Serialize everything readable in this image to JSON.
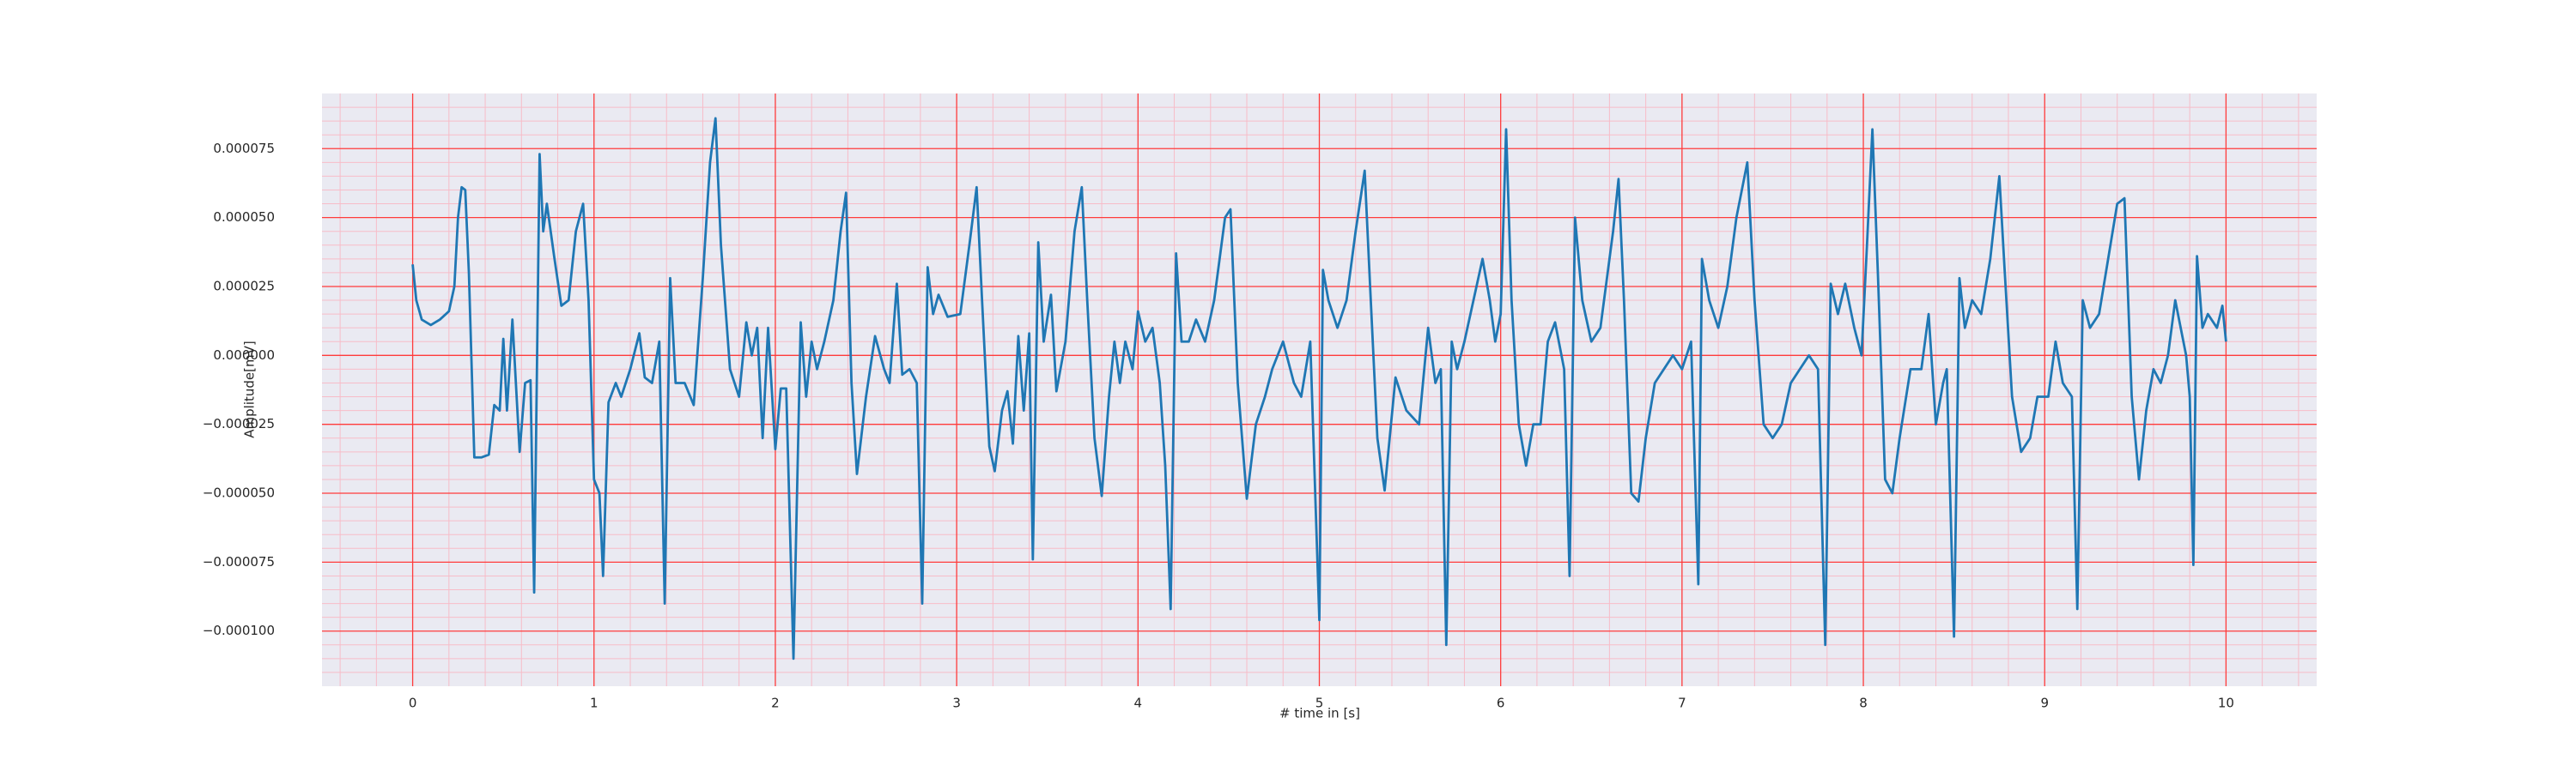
{
  "chart_data": {
    "type": "line",
    "x_label": "# time in [s]",
    "y_label": "Amplitude[mV]",
    "xlim": [
      -0.5,
      10.5
    ],
    "xticks": [
      0,
      1,
      2,
      3,
      4,
      5,
      6,
      7,
      8,
      9,
      10
    ],
    "ylim": [
      -0.00012,
      9.5e-05
    ],
    "yticks": [
      {
        "value": -0.0001,
        "label": "−0.000100"
      },
      {
        "value": -7.5e-05,
        "label": "−0.000075"
      },
      {
        "value": -5e-05,
        "label": "−0.000050"
      },
      {
        "value": -2.5e-05,
        "label": "−0.000025"
      },
      {
        "value": 0,
        "label": "0.000000"
      },
      {
        "value": 2.5e-05,
        "label": "0.000025"
      },
      {
        "value": 5e-05,
        "label": "0.000050"
      },
      {
        "value": 7.5e-05,
        "label": "0.000075"
      }
    ],
    "grid": true,
    "grid_color": "#ff3b3b",
    "minor_grid": true,
    "minor_grid_color": "#f7bcc8",
    "background": "#eaeaf2",
    "color": "#1f77b4",
    "x": [
      0,
      0.02,
      0.05,
      0.1,
      0.15,
      0.2,
      0.23,
      0.25,
      0.27,
      0.29,
      0.31,
      0.34,
      0.38,
      0.42,
      0.45,
      0.48,
      0.5,
      0.52,
      0.55,
      0.59,
      0.62,
      0.65,
      0.67,
      0.7,
      0.72,
      0.74,
      0.78,
      0.82,
      0.86,
      0.9,
      0.94,
      0.97,
      1.0,
      1.03,
      1.05,
      1.08,
      1.12,
      1.15,
      1.2,
      1.25,
      1.28,
      1.32,
      1.36,
      1.39,
      1.42,
      1.45,
      1.5,
      1.55,
      1.6,
      1.64,
      1.67,
      1.7,
      1.75,
      1.8,
      1.84,
      1.87,
      1.9,
      1.93,
      1.96,
      2.0,
      2.03,
      2.06,
      2.1,
      2.14,
      2.17,
      2.2,
      2.23,
      2.27,
      2.32,
      2.36,
      2.39,
      2.42,
      2.45,
      2.5,
      2.55,
      2.6,
      2.63,
      2.67,
      2.7,
      2.74,
      2.78,
      2.81,
      2.84,
      2.87,
      2.9,
      2.95,
      3.02,
      3.07,
      3.11,
      3.14,
      3.18,
      3.21,
      3.25,
      3.28,
      3.31,
      3.34,
      3.37,
      3.4,
      3.42,
      3.45,
      3.48,
      3.52,
      3.55,
      3.6,
      3.65,
      3.69,
      3.72,
      3.76,
      3.8,
      3.84,
      3.87,
      3.9,
      3.93,
      3.97,
      4.0,
      4.04,
      4.08,
      4.12,
      4.15,
      4.18,
      4.21,
      4.24,
      4.28,
      4.32,
      4.37,
      4.42,
      4.48,
      4.51,
      4.55,
      4.6,
      4.65,
      4.7,
      4.74,
      4.8,
      4.86,
      4.9,
      4.95,
      5.0,
      5.02,
      5.05,
      5.1,
      5.15,
      5.2,
      5.25,
      5.28,
      5.32,
      5.36,
      5.42,
      5.48,
      5.55,
      5.6,
      5.64,
      5.67,
      5.7,
      5.73,
      5.76,
      5.8,
      5.85,
      5.9,
      5.94,
      5.97,
      6.0,
      6.03,
      6.06,
      6.1,
      6.14,
      6.18,
      6.22,
      6.26,
      6.3,
      6.35,
      6.38,
      6.41,
      6.45,
      6.5,
      6.55,
      6.62,
      6.65,
      6.68,
      6.72,
      6.76,
      6.8,
      6.85,
      6.9,
      6.95,
      7.0,
      7.05,
      7.09,
      7.11,
      7.15,
      7.2,
      7.25,
      7.3,
      7.36,
      7.4,
      7.45,
      7.5,
      7.55,
      7.6,
      7.65,
      7.7,
      7.75,
      7.79,
      7.82,
      7.86,
      7.9,
      7.95,
      7.99,
      8.02,
      8.05,
      8.08,
      8.12,
      8.16,
      8.2,
      8.26,
      8.32,
      8.36,
      8.4,
      8.44,
      8.46,
      8.5,
      8.53,
      8.56,
      8.6,
      8.65,
      8.7,
      8.75,
      8.78,
      8.82,
      8.87,
      8.92,
      8.96,
      9.02,
      9.06,
      9.1,
      9.15,
      9.18,
      9.21,
      9.25,
      9.3,
      9.35,
      9.4,
      9.44,
      9.48,
      9.52,
      9.56,
      9.6,
      9.64,
      9.68,
      9.72,
      9.78,
      9.8,
      9.82,
      9.84,
      9.87,
      9.9,
      9.95,
      9.98,
      10.0
    ],
    "values": [
      3.3e-05,
      2e-05,
      1.3e-05,
      1.1e-05,
      1.3e-05,
      1.6e-05,
      2.5e-05,
      5e-05,
      6.1e-05,
      6e-05,
      3e-05,
      -3.7e-05,
      -3.7e-05,
      -3.6e-05,
      -1.8e-05,
      -2e-05,
      6e-06,
      -2e-05,
      1.3e-05,
      -3.5e-05,
      -1e-05,
      -9e-06,
      -8.6e-05,
      7.3e-05,
      4.5e-05,
      5.5e-05,
      3.6e-05,
      1.8e-05,
      2e-05,
      4.5e-05,
      5.5e-05,
      2e-05,
      -4.5e-05,
      -5e-05,
      -8e-05,
      -1.7e-05,
      -1e-05,
      -1.5e-05,
      -5e-06,
      8e-06,
      -8e-06,
      -1e-05,
      5e-06,
      -9e-05,
      2.8e-05,
      -1e-05,
      -1e-05,
      -1.8e-05,
      2.8e-05,
      7e-05,
      8.6e-05,
      4e-05,
      -5e-06,
      -1.5e-05,
      1.2e-05,
      0,
      1e-05,
      -3e-05,
      1e-05,
      -3.4e-05,
      -1.2e-05,
      -1.2e-05,
      -0.00011,
      1.2e-05,
      -1.5e-05,
      5e-06,
      -5e-06,
      5e-06,
      2e-05,
      4.5e-05,
      5.9e-05,
      -1e-05,
      -4.3e-05,
      -1.5e-05,
      7e-06,
      -5e-06,
      -1e-05,
      2.6e-05,
      -7e-06,
      -5e-06,
      -1e-05,
      -9e-05,
      3.2e-05,
      1.5e-05,
      2.2e-05,
      1.4e-05,
      1.5e-05,
      4e-05,
      6.1e-05,
      2e-05,
      -3.3e-05,
      -4.2e-05,
      -2e-05,
      -1.3e-05,
      -3.2e-05,
      7e-06,
      -2e-05,
      8e-06,
      -7.4e-05,
      4.1e-05,
      5e-06,
      2.2e-05,
      -1.3e-05,
      5e-06,
      4.5e-05,
      6.1e-05,
      2e-05,
      -3e-05,
      -5.1e-05,
      -1.5e-05,
      5e-06,
      -1e-05,
      5e-06,
      -5e-06,
      1.6e-05,
      5e-06,
      1e-05,
      -1e-05,
      -4e-05,
      -9.2e-05,
      3.7e-05,
      5e-06,
      5e-06,
      1.3e-05,
      5e-06,
      2e-05,
      5e-05,
      5.3e-05,
      -1e-05,
      -5.2e-05,
      -2.5e-05,
      -1.5e-05,
      -5e-06,
      5e-06,
      -1e-05,
      -1.5e-05,
      5e-06,
      -9.6e-05,
      3.1e-05,
      2e-05,
      1e-05,
      2e-05,
      4.5e-05,
      6.7e-05,
      2.5e-05,
      -3e-05,
      -4.9e-05,
      -8e-06,
      -2e-05,
      -2.5e-05,
      1e-05,
      -1e-05,
      -5e-06,
      -0.000105,
      5e-06,
      -5e-06,
      5e-06,
      2e-05,
      3.5e-05,
      2e-05,
      5e-06,
      1.5e-05,
      8.2e-05,
      2e-05,
      -2.5e-05,
      -4e-05,
      -2.5e-05,
      -2.5e-05,
      5e-06,
      1.2e-05,
      -5e-06,
      -8e-05,
      5e-05,
      2e-05,
      5e-06,
      1e-05,
      4.5e-05,
      6.4e-05,
      2e-05,
      -5e-05,
      -5.3e-05,
      -3e-05,
      -1e-05,
      -5e-06,
      0,
      -5e-06,
      5e-06,
      -8.3e-05,
      3.5e-05,
      2e-05,
      1e-05,
      2.5e-05,
      5e-05,
      7e-05,
      2e-05,
      -2.5e-05,
      -3e-05,
      -2.5e-05,
      -1e-05,
      -5e-06,
      0,
      -5e-06,
      -0.000105,
      2.6e-05,
      1.5e-05,
      2.6e-05,
      1e-05,
      0,
      4e-05,
      8.2e-05,
      3e-05,
      -4.5e-05,
      -5e-05,
      -3e-05,
      -5e-06,
      -5e-06,
      1.5e-05,
      -2.5e-05,
      -1e-05,
      -5e-06,
      -0.000102,
      2.8e-05,
      1e-05,
      2e-05,
      1.5e-05,
      3.5e-05,
      6.5e-05,
      3e-05,
      -1.5e-05,
      -3.5e-05,
      -3e-05,
      -1.5e-05,
      -1.5e-05,
      5e-06,
      -1e-05,
      -1.5e-05,
      -9.2e-05,
      2e-05,
      1e-05,
      1.5e-05,
      3.5e-05,
      5.5e-05,
      5.7e-05,
      -1.5e-05,
      -4.5e-05,
      -2e-05,
      -5e-06,
      -1e-05,
      0,
      2e-05,
      0,
      -1.5e-05,
      -7.6e-05,
      3.6e-05,
      1e-05,
      1.5e-05,
      1e-05,
      1.8e-05,
      5e-06
    ]
  }
}
